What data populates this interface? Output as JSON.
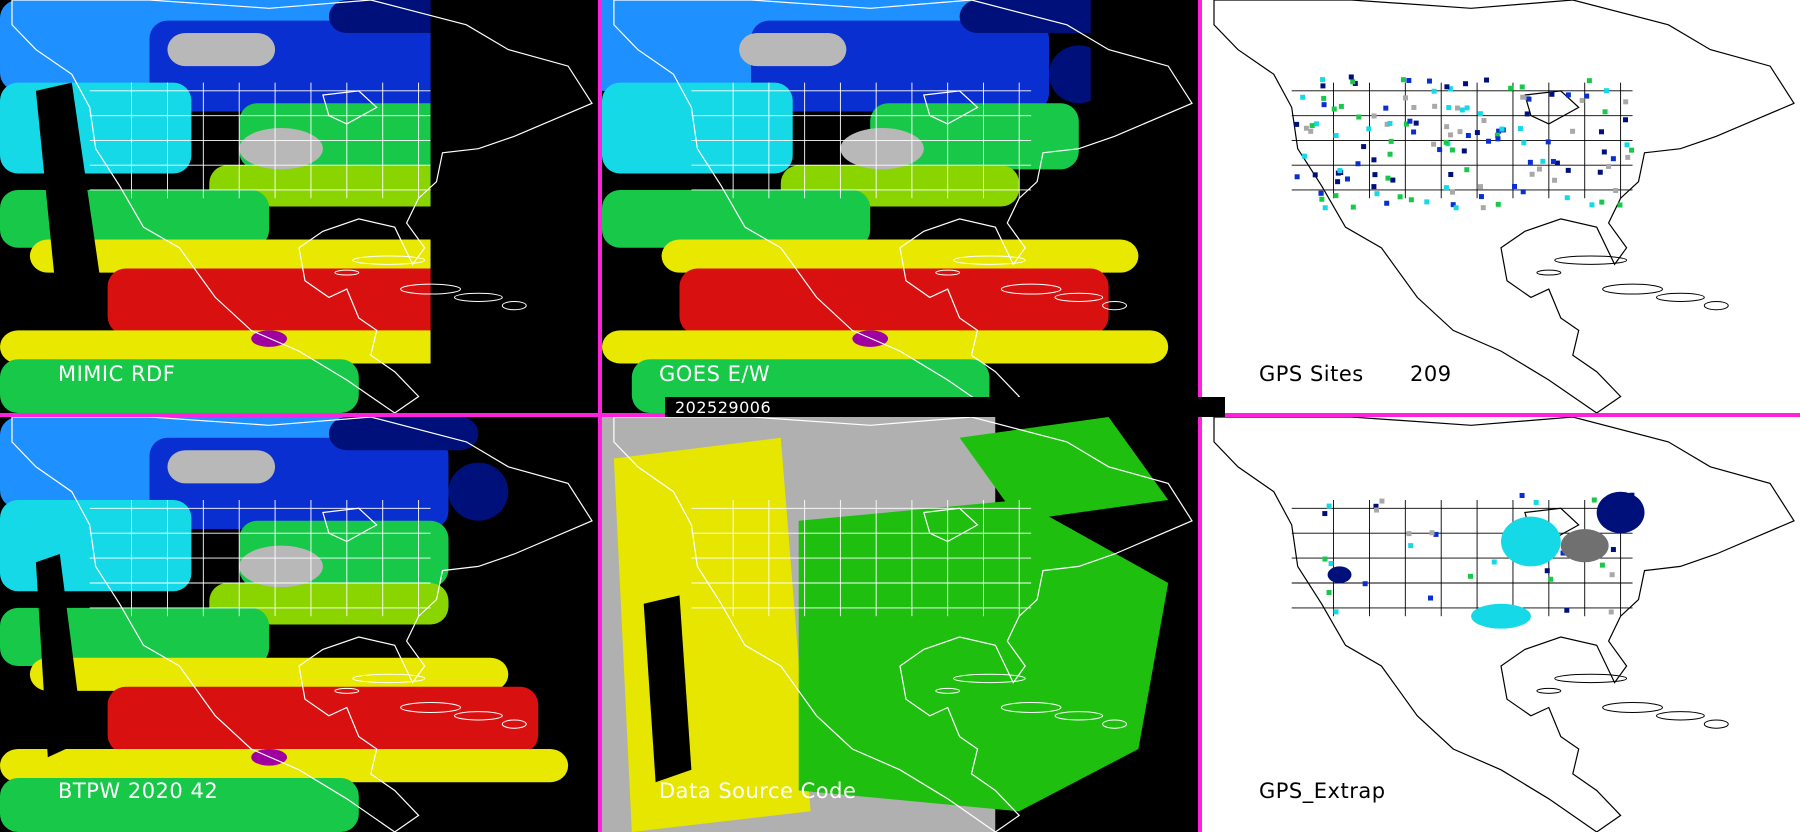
{
  "date_stamp": "202529006",
  "panels": {
    "mimic": {
      "label": "MIMIC RDF"
    },
    "goes": {
      "label": "GOES E/W"
    },
    "gps_sites": {
      "label": "GPS Sites",
      "count": "209"
    },
    "btpw": {
      "label": "BTPW 2020 42"
    },
    "source": {
      "label": "Data Source Code"
    },
    "gps_extrap": {
      "label": "GPS_Extrap"
    }
  },
  "colors": {
    "divider": "#ff22dd",
    "water_vapor_scale": [
      "#000000",
      "#00107a",
      "#0a2fd0",
      "#1e90ff",
      "#16d9e8",
      "#18c848",
      "#8ad400",
      "#e8e800",
      "#d81010",
      "#a000a0",
      "#b8b8b8"
    ],
    "source_codes": [
      "#b0b0b0",
      "#e6e600",
      "#1fbf10",
      "#000000"
    ]
  }
}
